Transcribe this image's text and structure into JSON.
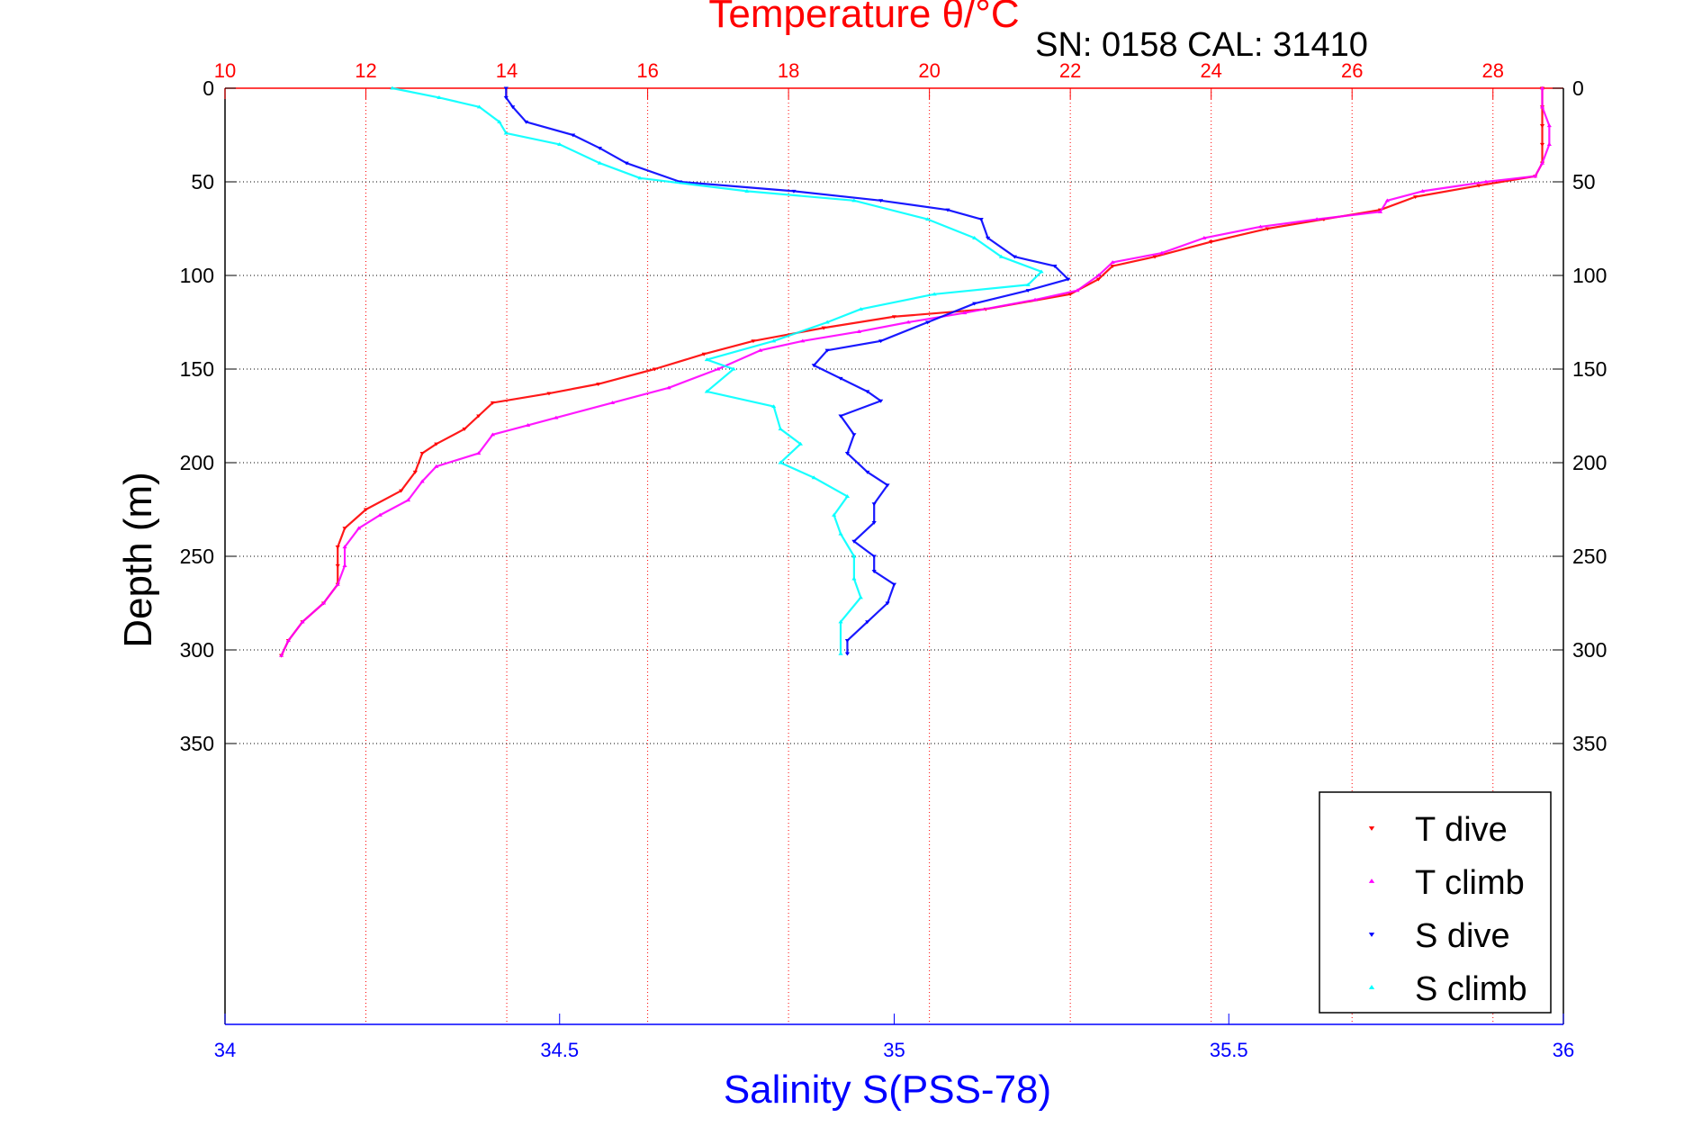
{
  "chart_data": {
    "type": "scatter",
    "title": "Temperature θ/°C",
    "subtitle": "SN: 0158  CAL: 31410",
    "xlabel_top": "",
    "xlabel_bottom": "Salinity S(PSS-78)",
    "ylabel": "Depth (m)",
    "x_top_lim": [
      10,
      29
    ],
    "x_top_ticks": [
      10,
      12,
      14,
      16,
      18,
      20,
      22,
      24,
      26,
      28
    ],
    "x_bottom_lim": [
      34,
      36
    ],
    "x_bottom_ticks": [
      34,
      34.5,
      35,
      35.5,
      36
    ],
    "ylim": [
      0,
      500
    ],
    "y_ticks": [
      0,
      50,
      100,
      150,
      200,
      250,
      300,
      350
    ],
    "y_reversed": true,
    "grid": "dotted",
    "legend_position": "bottom-right",
    "colors": {
      "title": "#ff0000",
      "top_axis": "#ff0000",
      "bottom_axis": "#0000ff",
      "t_dive": "#ff0000",
      "t_climb": "#ff00ff",
      "s_dive": "#0000ff",
      "s_climb": "#00ffff"
    },
    "series": [
      {
        "name": "T dive",
        "axis": "temperature",
        "marker": "triangle-down",
        "color": "#ff0000",
        "points": [
          [
            28.7,
            0
          ],
          [
            28.7,
            10
          ],
          [
            28.7,
            20
          ],
          [
            28.7,
            30
          ],
          [
            28.7,
            40
          ],
          [
            28.6,
            47
          ],
          [
            27.8,
            52
          ],
          [
            26.9,
            58
          ],
          [
            26.4,
            65
          ],
          [
            25.6,
            70
          ],
          [
            24.8,
            75
          ],
          [
            24.0,
            82
          ],
          [
            23.2,
            90
          ],
          [
            22.6,
            95
          ],
          [
            22.4,
            102
          ],
          [
            22.0,
            110
          ],
          [
            20.8,
            118
          ],
          [
            19.5,
            122
          ],
          [
            18.5,
            128
          ],
          [
            17.5,
            135
          ],
          [
            16.8,
            142
          ],
          [
            16.1,
            150
          ],
          [
            15.3,
            158
          ],
          [
            14.6,
            163
          ],
          [
            13.8,
            168
          ],
          [
            13.6,
            175
          ],
          [
            13.4,
            182
          ],
          [
            13.0,
            190
          ],
          [
            12.8,
            195
          ],
          [
            12.7,
            205
          ],
          [
            12.5,
            215
          ],
          [
            12.0,
            225
          ],
          [
            11.7,
            235
          ],
          [
            11.6,
            245
          ],
          [
            11.6,
            255
          ],
          [
            11.6,
            265
          ],
          [
            11.4,
            275
          ],
          [
            11.1,
            285
          ],
          [
            10.9,
            295
          ],
          [
            10.8,
            303
          ]
        ]
      },
      {
        "name": "T climb",
        "axis": "temperature",
        "marker": "triangle-up",
        "color": "#ff00ff",
        "points": [
          [
            28.7,
            0
          ],
          [
            28.7,
            10
          ],
          [
            28.8,
            20
          ],
          [
            28.8,
            30
          ],
          [
            28.7,
            40
          ],
          [
            28.6,
            47
          ],
          [
            27.9,
            50
          ],
          [
            27.0,
            55
          ],
          [
            26.5,
            60
          ],
          [
            26.4,
            66
          ],
          [
            25.5,
            70
          ],
          [
            24.7,
            74
          ],
          [
            23.9,
            80
          ],
          [
            23.3,
            88
          ],
          [
            22.6,
            93
          ],
          [
            22.4,
            100
          ],
          [
            22.1,
            108
          ],
          [
            21.5,
            113
          ],
          [
            20.5,
            120
          ],
          [
            19.7,
            125
          ],
          [
            19.0,
            130
          ],
          [
            18.2,
            135
          ],
          [
            17.6,
            140
          ],
          [
            17.0,
            150
          ],
          [
            16.3,
            160
          ],
          [
            15.5,
            168
          ],
          [
            14.7,
            176
          ],
          [
            14.3,
            180
          ],
          [
            13.8,
            185
          ],
          [
            13.6,
            195
          ],
          [
            13.0,
            202
          ],
          [
            12.8,
            210
          ],
          [
            12.6,
            220
          ],
          [
            12.2,
            228
          ],
          [
            11.9,
            235
          ],
          [
            11.7,
            245
          ],
          [
            11.7,
            255
          ],
          [
            11.6,
            265
          ],
          [
            11.4,
            275
          ],
          [
            11.1,
            285
          ],
          [
            10.9,
            295
          ],
          [
            10.8,
            303
          ]
        ]
      },
      {
        "name": "S dive",
        "axis": "salinity",
        "marker": "triangle-down",
        "color": "#0000ff",
        "points": [
          [
            34.42,
            0
          ],
          [
            34.42,
            5
          ],
          [
            34.43,
            10
          ],
          [
            34.45,
            18
          ],
          [
            34.52,
            25
          ],
          [
            34.56,
            32
          ],
          [
            34.6,
            40
          ],
          [
            34.68,
            50
          ],
          [
            34.85,
            55
          ],
          [
            34.98,
            60
          ],
          [
            35.08,
            65
          ],
          [
            35.13,
            70
          ],
          [
            35.14,
            80
          ],
          [
            35.18,
            90
          ],
          [
            35.24,
            95
          ],
          [
            35.26,
            102
          ],
          [
            35.2,
            108
          ],
          [
            35.12,
            115
          ],
          [
            35.05,
            125
          ],
          [
            34.98,
            135
          ],
          [
            34.9,
            140
          ],
          [
            34.88,
            148
          ],
          [
            34.92,
            155
          ],
          [
            34.96,
            162
          ],
          [
            34.98,
            167
          ],
          [
            34.92,
            175
          ],
          [
            34.94,
            185
          ],
          [
            34.93,
            195
          ],
          [
            34.96,
            205
          ],
          [
            34.99,
            212
          ],
          [
            34.97,
            222
          ],
          [
            34.97,
            232
          ],
          [
            34.94,
            242
          ],
          [
            34.97,
            250
          ],
          [
            34.97,
            258
          ],
          [
            35.0,
            265
          ],
          [
            34.99,
            275
          ],
          [
            34.96,
            285
          ],
          [
            34.93,
            295
          ],
          [
            34.93,
            302
          ]
        ]
      },
      {
        "name": "S climb",
        "axis": "salinity",
        "marker": "triangle-up",
        "color": "#00ffff",
        "points": [
          [
            34.25,
            0
          ],
          [
            34.32,
            5
          ],
          [
            34.38,
            10
          ],
          [
            34.41,
            18
          ],
          [
            34.42,
            24
          ],
          [
            34.5,
            30
          ],
          [
            34.56,
            40
          ],
          [
            34.62,
            48
          ],
          [
            34.78,
            55
          ],
          [
            34.94,
            60
          ],
          [
            35.05,
            70
          ],
          [
            35.12,
            80
          ],
          [
            35.16,
            90
          ],
          [
            35.22,
            98
          ],
          [
            35.2,
            105
          ],
          [
            35.06,
            110
          ],
          [
            34.95,
            118
          ],
          [
            34.9,
            125
          ],
          [
            34.82,
            135
          ],
          [
            34.72,
            145
          ],
          [
            34.76,
            150
          ],
          [
            34.72,
            162
          ],
          [
            34.82,
            170
          ],
          [
            34.83,
            182
          ],
          [
            34.86,
            190
          ],
          [
            34.83,
            200
          ],
          [
            34.88,
            208
          ],
          [
            34.93,
            218
          ],
          [
            34.91,
            228
          ],
          [
            34.92,
            238
          ],
          [
            34.94,
            250
          ],
          [
            34.94,
            262
          ],
          [
            34.95,
            272
          ],
          [
            34.92,
            285
          ],
          [
            34.92,
            302
          ]
        ]
      }
    ],
    "legend": [
      "T dive",
      "T climb",
      "S dive",
      "S climb"
    ]
  }
}
